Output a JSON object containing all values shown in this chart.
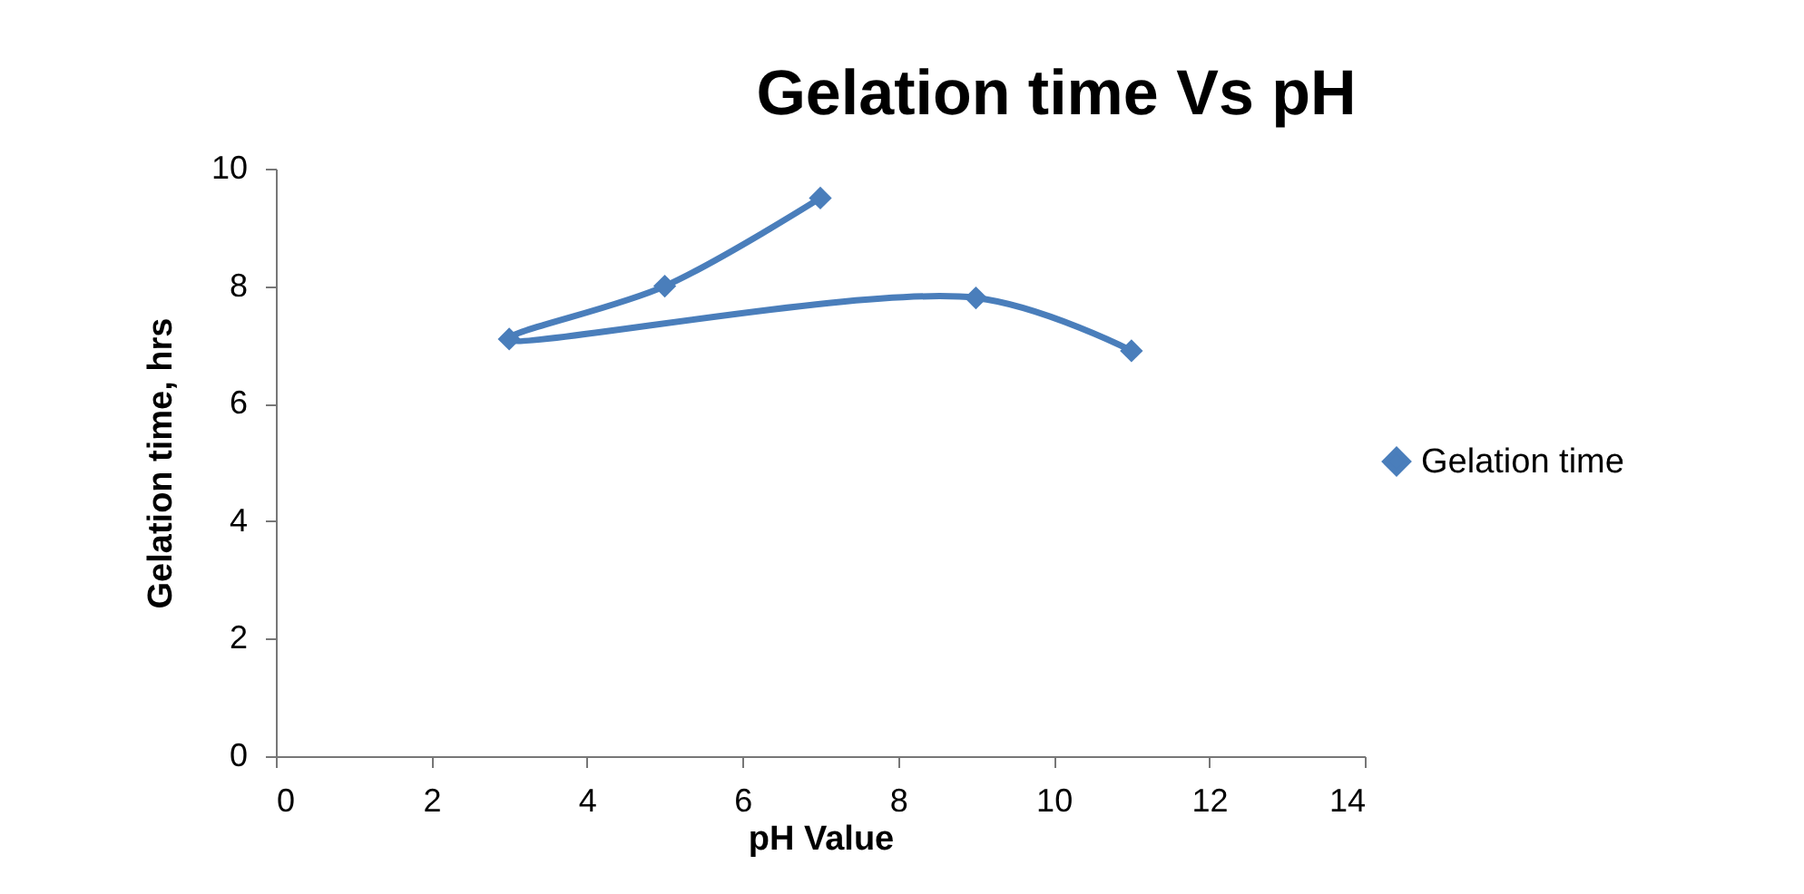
{
  "chart_data": {
    "type": "line",
    "title": "Gelation time Vs pH",
    "xlabel": "pH Value",
    "ylabel": "Gelation time, hrs",
    "x": [
      7,
      5,
      3,
      9,
      11
    ],
    "series": [
      {
        "name": "Gelation time",
        "color": "#4a7ebb",
        "values": [
          9.5,
          8,
          7.1,
          7.8,
          6.9
        ]
      }
    ],
    "xlim": [
      0,
      14
    ],
    "xticks": [
      0,
      2,
      4,
      6,
      8,
      10,
      12,
      14
    ],
    "ylim": [
      0,
      10
    ],
    "yticks": [
      0,
      2,
      4,
      6,
      8,
      10
    ],
    "grid": false,
    "legend": "right",
    "marker": "diamond",
    "line_style": "solid"
  }
}
